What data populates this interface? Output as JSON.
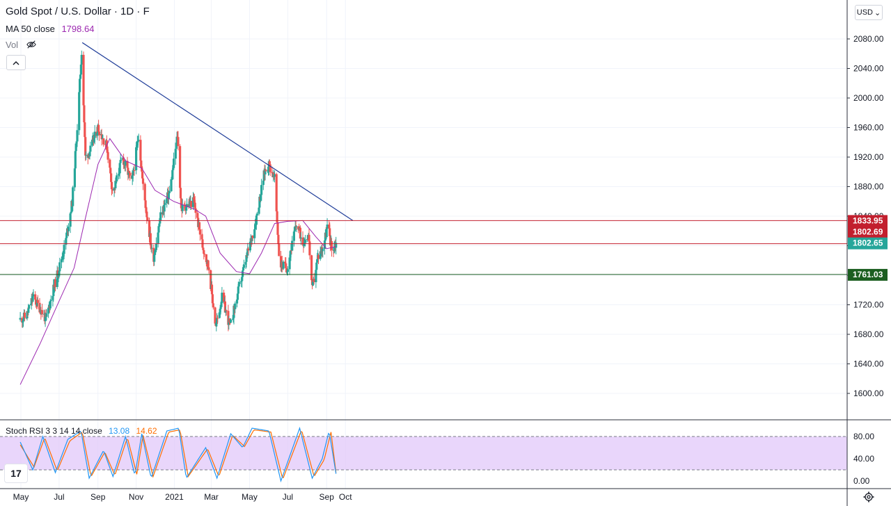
{
  "header": {
    "symbol_title": "Gold Spot / U.S. Dollar · 1D · F",
    "ma_label": "MA 50 close",
    "ma_value": "1798.64",
    "vol_label": "Vol",
    "currency": "USD"
  },
  "stoch": {
    "label": "Stoch RSI 3 3 14 14 close",
    "k_value": "13.08",
    "d_value": "14.62"
  },
  "tv_logo": "17",
  "colors": {
    "up": "#26a69a",
    "down": "#ef5350",
    "ma": "#9c27b0",
    "trendline": "#1f3d99",
    "resistance": "#c21f2e",
    "support": "#1b5e20",
    "stoch_k": "#2196f3",
    "stoch_d": "#ff6d00",
    "stoch_band": "#e1c8fa"
  },
  "chart_data": {
    "type": "candlestick",
    "title": "Gold Spot / U.S. Dollar · 1D · F",
    "ylim": [
      1560,
      2120
    ],
    "y_ticks": [
      1600,
      1640,
      1680,
      1720,
      1760,
      1800,
      1840,
      1880,
      1920,
      1960,
      2000,
      2040,
      2080
    ],
    "x_ticks": [
      "May",
      "Jul",
      "Sep",
      "Nov",
      "2021",
      "Mar",
      "May",
      "Jul",
      "Sep",
      "Oct"
    ],
    "x_tick_days": [
      0,
      61,
      123,
      184,
      245,
      304,
      365,
      426,
      488,
      518
    ],
    "date_range": [
      "2020-04-30",
      "2021-09-16"
    ],
    "price_path": [
      {
        "date": "2020-04-30",
        "price": 1700
      },
      {
        "date": "2020-05-10",
        "price": 1705
      },
      {
        "date": "2020-05-20",
        "price": 1730
      },
      {
        "date": "2020-06-01",
        "price": 1715
      },
      {
        "date": "2020-06-10",
        "price": 1700
      },
      {
        "date": "2020-06-20",
        "price": 1735
      },
      {
        "date": "2020-07-01",
        "price": 1770
      },
      {
        "date": "2020-07-10",
        "price": 1800
      },
      {
        "date": "2020-07-22",
        "price": 1860
      },
      {
        "date": "2020-07-30",
        "price": 1960
      },
      {
        "date": "2020-08-06",
        "price": 2064
      },
      {
        "date": "2020-08-12",
        "price": 1920
      },
      {
        "date": "2020-08-20",
        "price": 1930
      },
      {
        "date": "2020-09-01",
        "price": 1960
      },
      {
        "date": "2020-09-15",
        "price": 1935
      },
      {
        "date": "2020-09-25",
        "price": 1870
      },
      {
        "date": "2020-10-10",
        "price": 1920
      },
      {
        "date": "2020-10-25",
        "price": 1885
      },
      {
        "date": "2020-11-05",
        "price": 1950
      },
      {
        "date": "2020-11-12",
        "price": 1880
      },
      {
        "date": "2020-11-28",
        "price": 1780
      },
      {
        "date": "2020-12-10",
        "price": 1840
      },
      {
        "date": "2020-12-25",
        "price": 1875
      },
      {
        "date": "2021-01-06",
        "price": 1950
      },
      {
        "date": "2021-01-12",
        "price": 1850
      },
      {
        "date": "2021-02-01",
        "price": 1860
      },
      {
        "date": "2021-02-15",
        "price": 1800
      },
      {
        "date": "2021-02-25",
        "price": 1770
      },
      {
        "date": "2021-03-08",
        "price": 1690
      },
      {
        "date": "2021-03-18",
        "price": 1730
      },
      {
        "date": "2021-03-31",
        "price": 1690
      },
      {
        "date": "2021-04-12",
        "price": 1735
      },
      {
        "date": "2021-04-25",
        "price": 1780
      },
      {
        "date": "2021-05-10",
        "price": 1830
      },
      {
        "date": "2021-05-25",
        "price": 1900
      },
      {
        "date": "2021-06-01",
        "price": 1910
      },
      {
        "date": "2021-06-10",
        "price": 1890
      },
      {
        "date": "2021-06-18",
        "price": 1775
      },
      {
        "date": "2021-06-30",
        "price": 1770
      },
      {
        "date": "2021-07-15",
        "price": 1830
      },
      {
        "date": "2021-07-25",
        "price": 1805
      },
      {
        "date": "2021-08-03",
        "price": 1815
      },
      {
        "date": "2021-08-09",
        "price": 1740
      },
      {
        "date": "2021-08-18",
        "price": 1785
      },
      {
        "date": "2021-08-27",
        "price": 1800
      },
      {
        "date": "2021-09-03",
        "price": 1830
      },
      {
        "date": "2021-09-09",
        "price": 1795
      },
      {
        "date": "2021-09-16",
        "price": 1803
      }
    ],
    "ma_path": [
      {
        "date": "2020-04-30",
        "price": 1612
      },
      {
        "date": "2020-06-01",
        "price": 1668
      },
      {
        "date": "2020-07-01",
        "price": 1725
      },
      {
        "date": "2020-07-25",
        "price": 1770
      },
      {
        "date": "2020-08-10",
        "price": 1830
      },
      {
        "date": "2020-09-01",
        "price": 1910
      },
      {
        "date": "2020-09-20",
        "price": 1945
      },
      {
        "date": "2020-10-15",
        "price": 1915
      },
      {
        "date": "2020-11-10",
        "price": 1905
      },
      {
        "date": "2020-12-01",
        "price": 1875
      },
      {
        "date": "2020-12-31",
        "price": 1860
      },
      {
        "date": "2021-02-01",
        "price": 1850
      },
      {
        "date": "2021-02-20",
        "price": 1840
      },
      {
        "date": "2021-03-15",
        "price": 1790
      },
      {
        "date": "2021-04-10",
        "price": 1765
      },
      {
        "date": "2021-05-01",
        "price": 1762
      },
      {
        "date": "2021-05-20",
        "price": 1790
      },
      {
        "date": "2021-06-10",
        "price": 1830
      },
      {
        "date": "2021-07-01",
        "price": 1833
      },
      {
        "date": "2021-07-25",
        "price": 1834
      },
      {
        "date": "2021-08-15",
        "price": 1812
      },
      {
        "date": "2021-09-01",
        "price": 1796
      },
      {
        "date": "2021-09-16",
        "price": 1799
      }
    ],
    "trendline": {
      "from": {
        "date": "2020-08-07",
        "price": 2075
      },
      "to": {
        "date": "2021-10-13",
        "price": 1834
      }
    },
    "levels": [
      {
        "value": "1833.95",
        "kind": "resistance"
      },
      {
        "value": "1802.69",
        "kind": "resistance"
      },
      {
        "value": "1761.03",
        "kind": "support"
      }
    ],
    "last_price": "1802.65",
    "stoch_rsi": {
      "ylim": [
        0,
        100
      ],
      "y_ticks": [
        0,
        40,
        80
      ],
      "upper_band": 80,
      "lower_band": 20,
      "k_path": [
        {
          "date": "2020-04-30",
          "v": 70
        },
        {
          "date": "2020-05-20",
          "v": 20
        },
        {
          "date": "2020-06-05",
          "v": 80
        },
        {
          "date": "2020-06-25",
          "v": 15
        },
        {
          "date": "2020-07-15",
          "v": 75
        },
        {
          "date": "2020-08-05",
          "v": 90
        },
        {
          "date": "2020-08-18",
          "v": 5
        },
        {
          "date": "2020-09-10",
          "v": 55
        },
        {
          "date": "2020-09-25",
          "v": 8
        },
        {
          "date": "2020-10-15",
          "v": 80
        },
        {
          "date": "2020-10-30",
          "v": 10
        },
        {
          "date": "2020-11-10",
          "v": 85
        },
        {
          "date": "2020-11-25",
          "v": 5
        },
        {
          "date": "2020-12-20",
          "v": 90
        },
        {
          "date": "2021-01-08",
          "v": 95
        },
        {
          "date": "2021-01-20",
          "v": 5
        },
        {
          "date": "2021-02-20",
          "v": 60
        },
        {
          "date": "2021-03-10",
          "v": 5
        },
        {
          "date": "2021-04-01",
          "v": 85
        },
        {
          "date": "2021-04-20",
          "v": 60
        },
        {
          "date": "2021-05-05",
          "v": 95
        },
        {
          "date": "2021-06-01",
          "v": 90
        },
        {
          "date": "2021-06-20",
          "v": 0
        },
        {
          "date": "2021-07-20",
          "v": 95
        },
        {
          "date": "2021-08-09",
          "v": 5
        },
        {
          "date": "2021-08-25",
          "v": 40
        },
        {
          "date": "2021-09-05",
          "v": 90
        },
        {
          "date": "2021-09-16",
          "v": 13
        }
      ],
      "d_path": [
        {
          "date": "2020-04-30",
          "v": 65
        },
        {
          "date": "2020-05-22",
          "v": 25
        },
        {
          "date": "2020-06-08",
          "v": 78
        },
        {
          "date": "2020-06-28",
          "v": 18
        },
        {
          "date": "2020-07-18",
          "v": 72
        },
        {
          "date": "2020-08-07",
          "v": 88
        },
        {
          "date": "2020-08-21",
          "v": 8
        },
        {
          "date": "2020-09-12",
          "v": 52
        },
        {
          "date": "2020-09-28",
          "v": 10
        },
        {
          "date": "2020-10-18",
          "v": 78
        },
        {
          "date": "2020-11-02",
          "v": 12
        },
        {
          "date": "2020-11-12",
          "v": 82
        },
        {
          "date": "2020-11-28",
          "v": 8
        },
        {
          "date": "2020-12-23",
          "v": 88
        },
        {
          "date": "2021-01-10",
          "v": 92
        },
        {
          "date": "2021-01-23",
          "v": 8
        },
        {
          "date": "2021-02-23",
          "v": 58
        },
        {
          "date": "2021-03-13",
          "v": 8
        },
        {
          "date": "2021-04-04",
          "v": 82
        },
        {
          "date": "2021-04-23",
          "v": 62
        },
        {
          "date": "2021-05-08",
          "v": 92
        },
        {
          "date": "2021-06-04",
          "v": 88
        },
        {
          "date": "2021-06-23",
          "v": 3
        },
        {
          "date": "2021-07-23",
          "v": 92
        },
        {
          "date": "2021-08-12",
          "v": 8
        },
        {
          "date": "2021-08-28",
          "v": 38
        },
        {
          "date": "2021-09-08",
          "v": 88
        },
        {
          "date": "2021-09-16",
          "v": 15
        }
      ]
    }
  }
}
